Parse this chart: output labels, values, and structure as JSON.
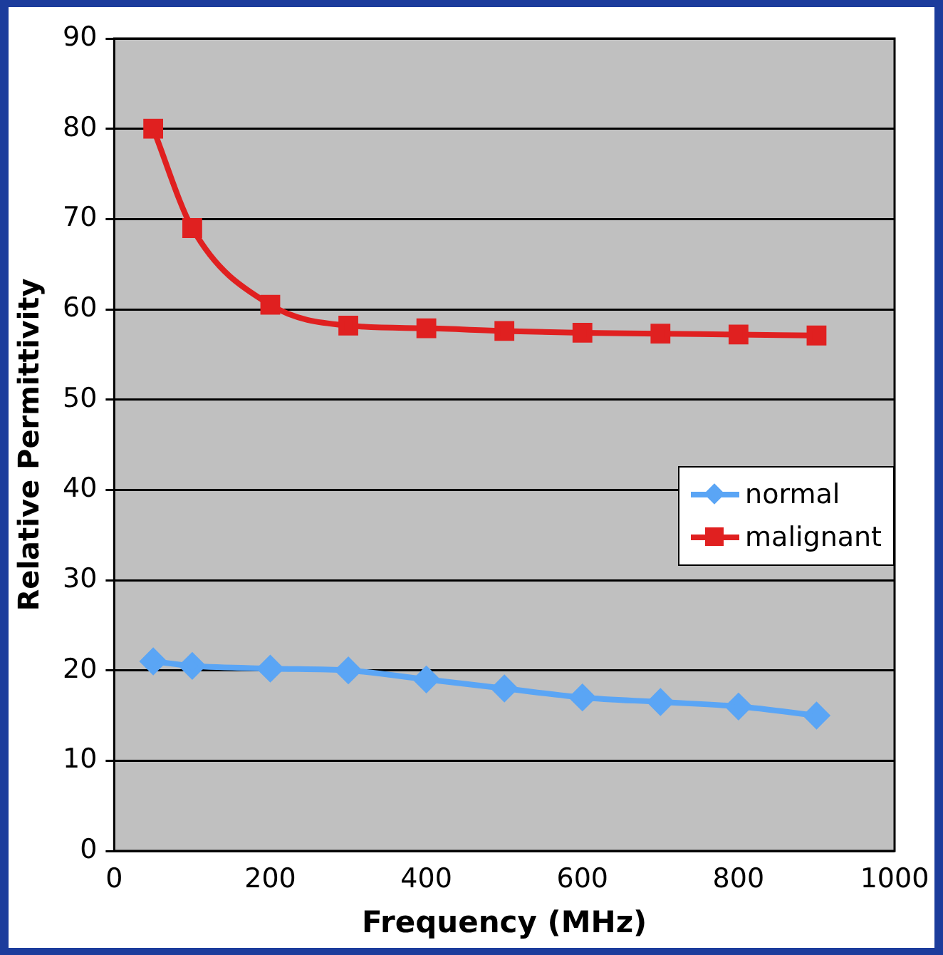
{
  "chart_data": {
    "type": "line",
    "xlabel": "Frequency (MHz)",
    "ylabel": "Relative Permittivity",
    "x": [
      50,
      100,
      200,
      300,
      400,
      500,
      600,
      700,
      800,
      900
    ],
    "series": [
      {
        "name": "normal",
        "color": "#5aa5f5",
        "marker": "diamond",
        "values": [
          21,
          20.5,
          20.2,
          20,
          19,
          18,
          17,
          16.5,
          16,
          15
        ]
      },
      {
        "name": "malignant",
        "color": "#e02020",
        "marker": "square",
        "values": [
          80,
          69,
          60.5,
          58.2,
          57.9,
          57.6,
          57.4,
          57.3,
          57.2,
          57.1
        ]
      }
    ],
    "xlim": [
      0,
      1000
    ],
    "xticks": [
      0,
      200,
      400,
      600,
      800,
      1000
    ],
    "ylim": [
      0,
      90
    ],
    "yticks": [
      0,
      10,
      20,
      30,
      40,
      50,
      60,
      70,
      80,
      90
    ],
    "grid": "y",
    "legend": "right",
    "line_style": "solid"
  }
}
